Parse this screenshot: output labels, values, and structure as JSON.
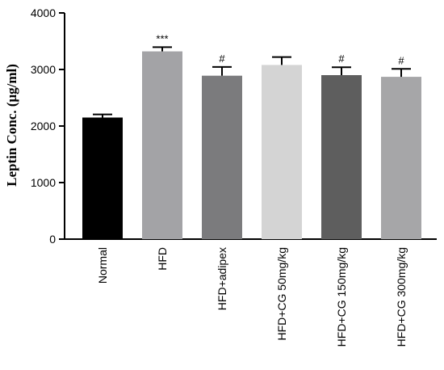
{
  "chart_data": {
    "type": "bar",
    "title": "",
    "xlabel": "",
    "ylabel": "Leptin Conc. (μg/ml)",
    "ylim": [
      0,
      4000
    ],
    "yticks": [
      0,
      1000,
      2000,
      3000,
      4000
    ],
    "categories": [
      "Normal",
      "HFD",
      "HFD+adipex",
      "HFD+CG 50mg/kg",
      "HFD+CG 150mg/kg",
      "HFD+CG 300mg/kg"
    ],
    "values": [
      2150,
      3320,
      2890,
      3080,
      2900,
      2870
    ],
    "errors": [
      55,
      75,
      155,
      140,
      140,
      140
    ],
    "colors": [
      "#000000",
      "#a3a3a6",
      "#7b7b7d",
      "#d4d4d4",
      "#5e5e5e",
      "#a6a6a8"
    ],
    "annotations": [
      "",
      "***",
      "#",
      "",
      "#",
      "#"
    ],
    "grid": false,
    "legend": "none"
  }
}
